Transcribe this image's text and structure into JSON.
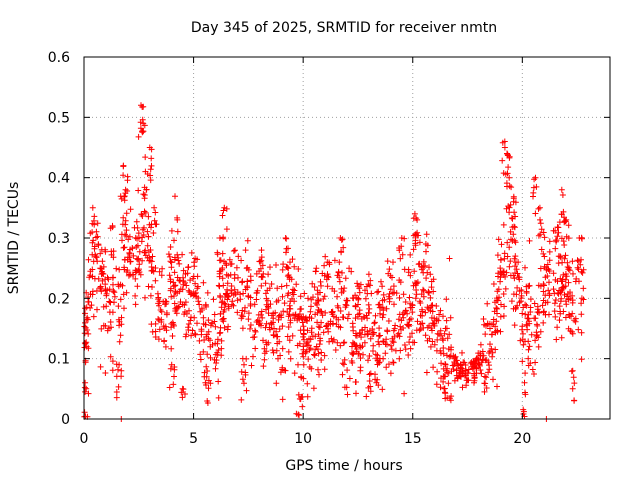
{
  "chart_data": {
    "type": "scatter",
    "title": "Day 345 of 2025, SRMTID for receiver nmtn",
    "xlabel": "GPS time / hours",
    "ylabel": "SRMTID / TECUs",
    "xlim": [
      0,
      24
    ],
    "ylim": [
      0,
      0.6
    ],
    "xticks": [
      0,
      5,
      10,
      15,
      20
    ],
    "xtick_labels": [
      "0",
      "5",
      "10",
      "15",
      "20"
    ],
    "yticks": [
      0,
      0.1,
      0.2,
      0.3,
      0.4,
      0.5,
      0.6
    ],
    "ytick_labels": [
      "0",
      "0.1",
      "0.2",
      "0.3",
      "0.4",
      "0.5",
      "0.6"
    ],
    "grid": true,
    "marker": "plus",
    "series_color": "#ff0000",
    "trend": [
      [
        0.0,
        0.12
      ],
      [
        0.3,
        0.22
      ],
      [
        0.6,
        0.26
      ],
      [
        1.0,
        0.2
      ],
      [
        1.5,
        0.18
      ],
      [
        1.8,
        0.26
      ],
      [
        2.0,
        0.3
      ],
      [
        2.3,
        0.26
      ],
      [
        2.6,
        0.3
      ],
      [
        3.0,
        0.28
      ],
      [
        3.3,
        0.18
      ],
      [
        3.7,
        0.16
      ],
      [
        4.0,
        0.23
      ],
      [
        4.5,
        0.22
      ],
      [
        5.0,
        0.2
      ],
      [
        5.5,
        0.13
      ],
      [
        6.0,
        0.15
      ],
      [
        6.5,
        0.22
      ],
      [
        7.0,
        0.2
      ],
      [
        7.5,
        0.18
      ],
      [
        8.0,
        0.17
      ],
      [
        8.5,
        0.15
      ],
      [
        9.0,
        0.16
      ],
      [
        9.5,
        0.19
      ],
      [
        10.0,
        0.12
      ],
      [
        10.5,
        0.15
      ],
      [
        11.0,
        0.18
      ],
      [
        11.5,
        0.17
      ],
      [
        12.0,
        0.16
      ],
      [
        12.5,
        0.14
      ],
      [
        13.0,
        0.13
      ],
      [
        13.5,
        0.14
      ],
      [
        14.0,
        0.15
      ],
      [
        14.5,
        0.17
      ],
      [
        15.0,
        0.19
      ],
      [
        15.5,
        0.2
      ],
      [
        16.0,
        0.14
      ],
      [
        16.5,
        0.1
      ],
      [
        17.0,
        0.085
      ],
      [
        17.5,
        0.075
      ],
      [
        18.0,
        0.09
      ],
      [
        18.5,
        0.12
      ],
      [
        19.0,
        0.22
      ],
      [
        19.5,
        0.28
      ],
      [
        20.0,
        0.18
      ],
      [
        20.5,
        0.15
      ],
      [
        21.0,
        0.2
      ],
      [
        21.5,
        0.25
      ],
      [
        22.0,
        0.22
      ],
      [
        22.5,
        0.2
      ],
      [
        22.8,
        0.19
      ]
    ],
    "spikes": [
      [
        0.05,
        0.06
      ],
      [
        0.1,
        0.05
      ],
      [
        0.4,
        0.35
      ],
      [
        1.3,
        0.32
      ],
      [
        1.6,
        0.09
      ],
      [
        1.8,
        0.42
      ],
      [
        1.9,
        0.38
      ],
      [
        2.6,
        0.52
      ],
      [
        2.7,
        0.49
      ],
      [
        2.8,
        0.41
      ],
      [
        3.0,
        0.45
      ],
      [
        3.2,
        0.35
      ],
      [
        4.0,
        0.09
      ],
      [
        4.5,
        0.05
      ],
      [
        5.6,
        0.07
      ],
      [
        6.2,
        0.3
      ],
      [
        6.4,
        0.35
      ],
      [
        7.3,
        0.09
      ],
      [
        8.1,
        0.28
      ],
      [
        8.4,
        0.24
      ],
      [
        9.2,
        0.3
      ],
      [
        9.4,
        0.26
      ],
      [
        9.8,
        0.04
      ],
      [
        9.9,
        0.07
      ],
      [
        10.6,
        0.25
      ],
      [
        11.1,
        0.26
      ],
      [
        11.7,
        0.3
      ],
      [
        12.5,
        0.22
      ],
      [
        13.0,
        0.24
      ],
      [
        13.6,
        0.22
      ],
      [
        14.1,
        0.26
      ],
      [
        14.5,
        0.3
      ],
      [
        15.1,
        0.34
      ],
      [
        15.2,
        0.33
      ],
      [
        15.6,
        0.29
      ],
      [
        15.8,
        0.24
      ],
      [
        16.5,
        0.09
      ],
      [
        19.2,
        0.46
      ],
      [
        19.3,
        0.44
      ],
      [
        19.4,
        0.4
      ],
      [
        19.6,
        0.36
      ],
      [
        20.1,
        0.06
      ],
      [
        20.6,
        0.4
      ],
      [
        20.8,
        0.35
      ],
      [
        21.8,
        0.38
      ],
      [
        22.0,
        0.33
      ],
      [
        22.3,
        0.08
      ],
      [
        22.6,
        0.3
      ]
    ],
    "zero_points": [
      [
        1.7,
        0.0
      ],
      [
        21.1,
        0.0
      ]
    ],
    "scatter_density": {
      "points_per_hour": 70,
      "jitter_sd": 0.045
    }
  }
}
